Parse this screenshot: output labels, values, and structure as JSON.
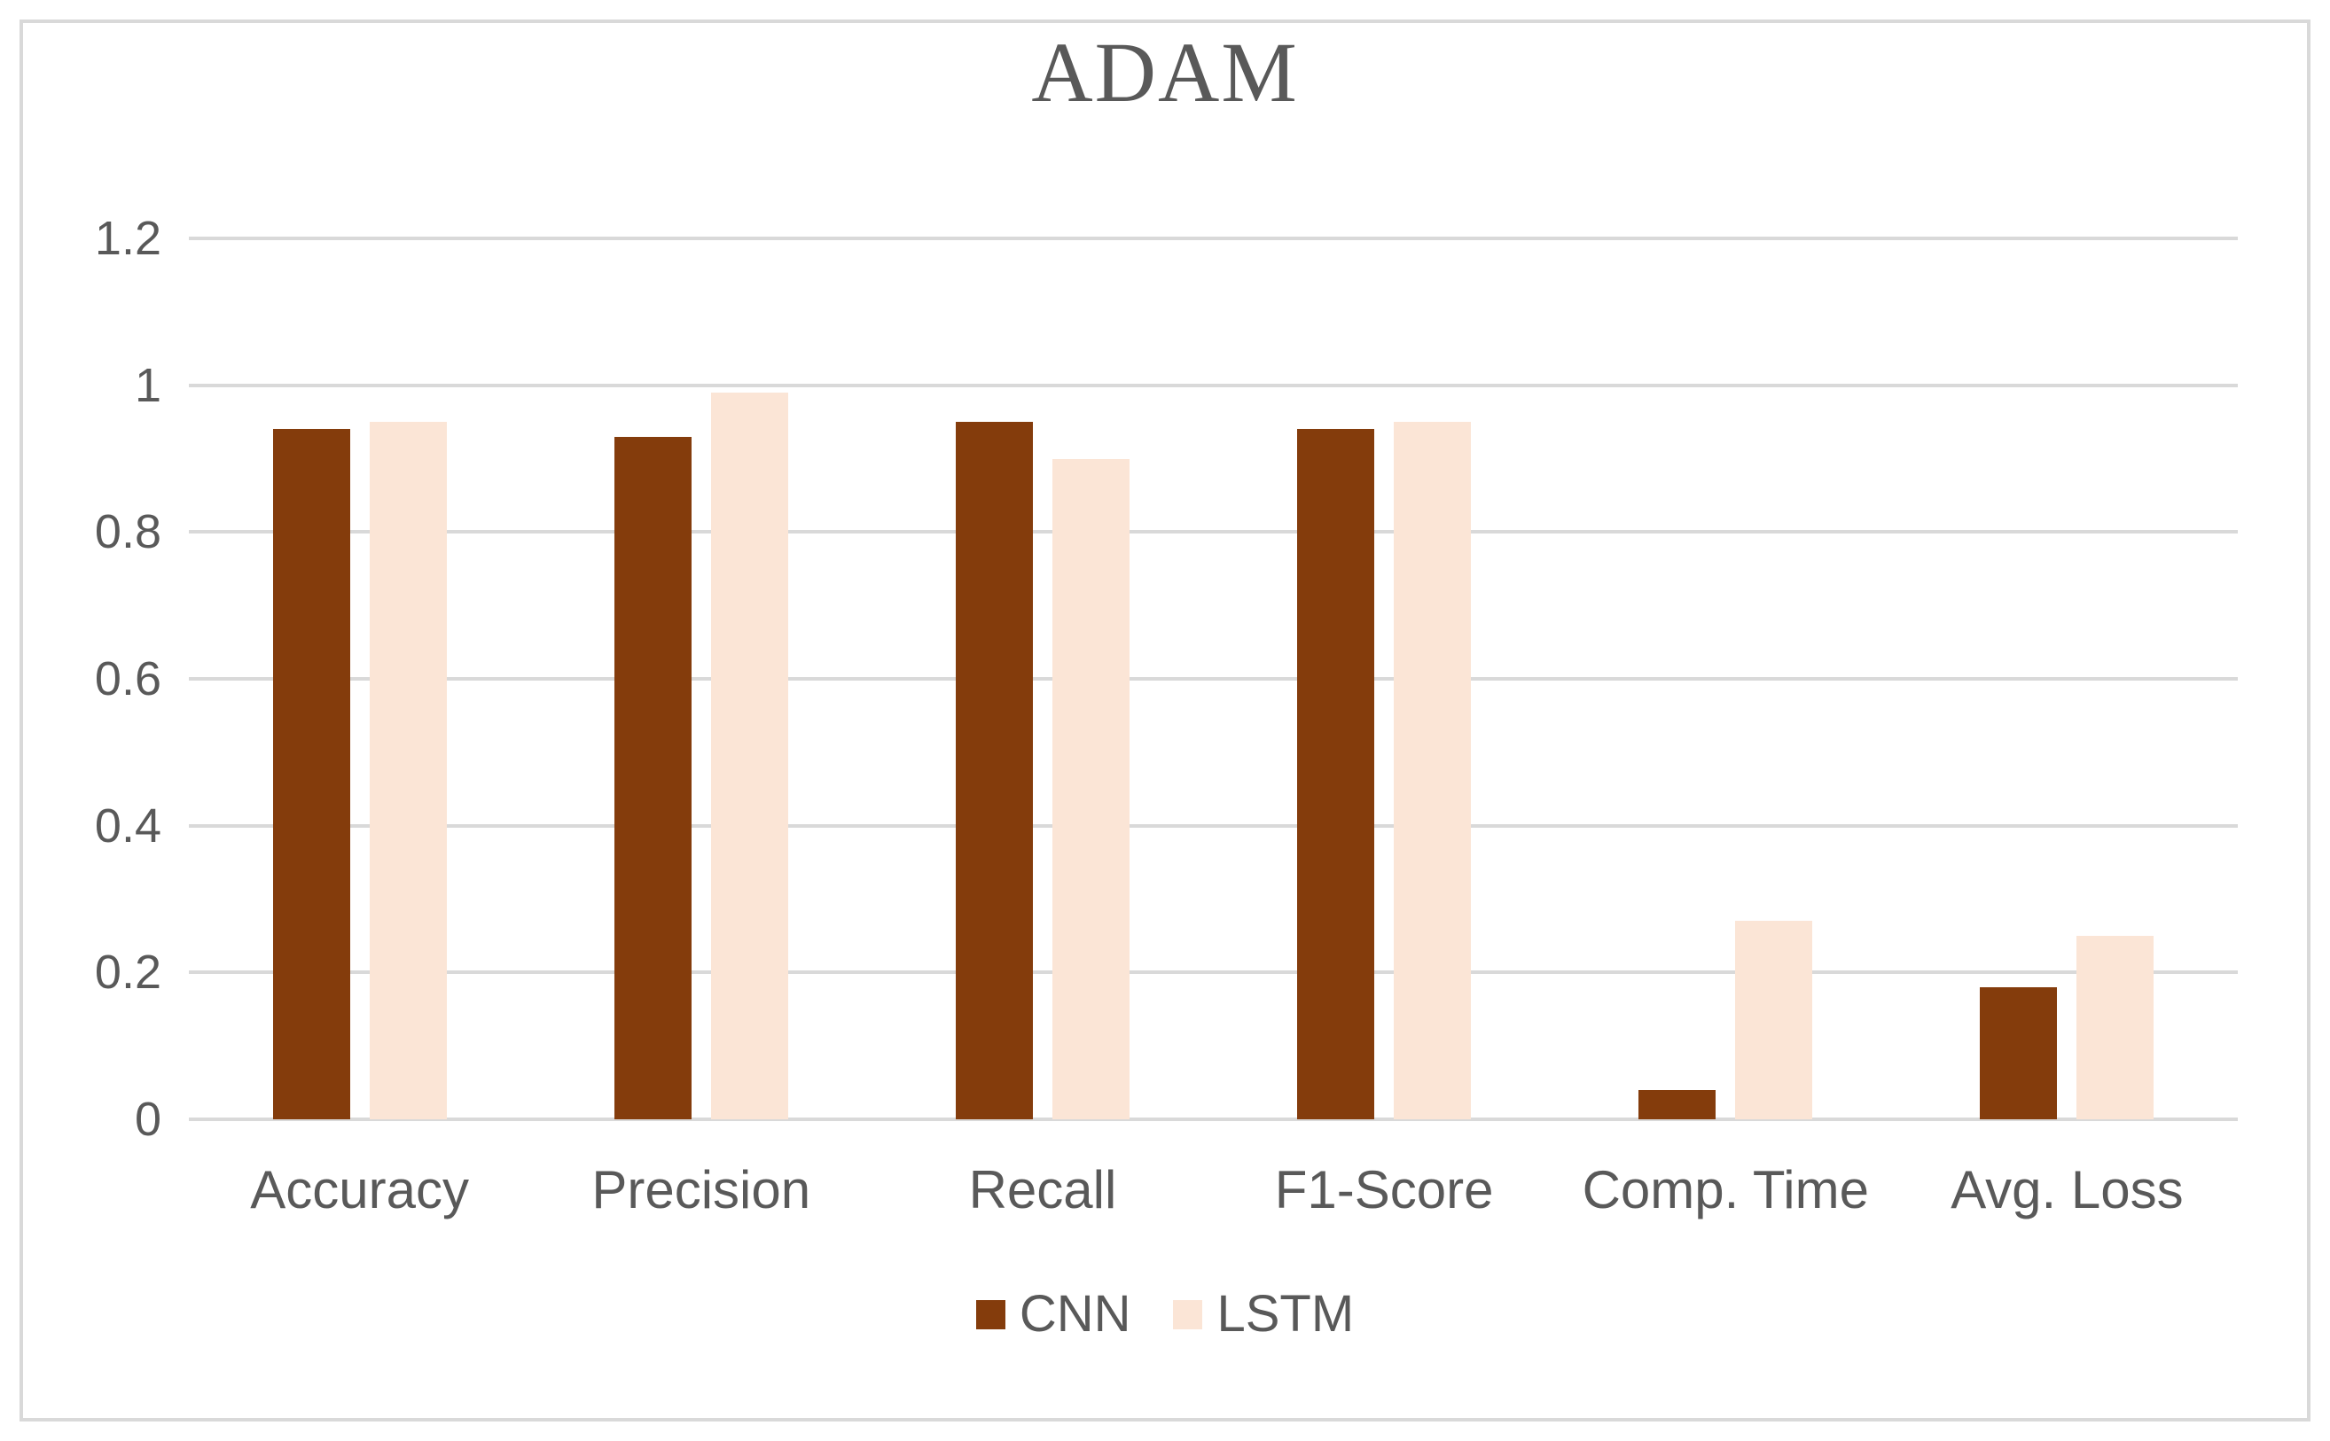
{
  "chart_data": {
    "type": "bar",
    "title": "ADAM",
    "categories": [
      "Accuracy",
      "Precision",
      "Recall",
      "F1-Score",
      "Comp. Time",
      "Avg. Loss"
    ],
    "series": [
      {
        "name": "CNN",
        "color": "#843C0C",
        "values": [
          0.94,
          0.93,
          0.95,
          0.94,
          0.04,
          0.18
        ]
      },
      {
        "name": "LSTM",
        "color": "#FBE5D6",
        "values": [
          0.95,
          0.99,
          0.9,
          0.95,
          0.27,
          0.25
        ]
      }
    ],
    "xlabel": "",
    "ylabel": "",
    "ylim": [
      0,
      1.2
    ],
    "yticks": [
      0,
      0.2,
      0.4,
      0.6,
      0.8,
      1,
      1.2
    ],
    "grid": true,
    "legend_position": "bottom"
  },
  "colors": {
    "text": "#595959",
    "gridline": "#D9D9D9",
    "frame_border": "#D9D9D9",
    "background": "#FFFFFF"
  }
}
